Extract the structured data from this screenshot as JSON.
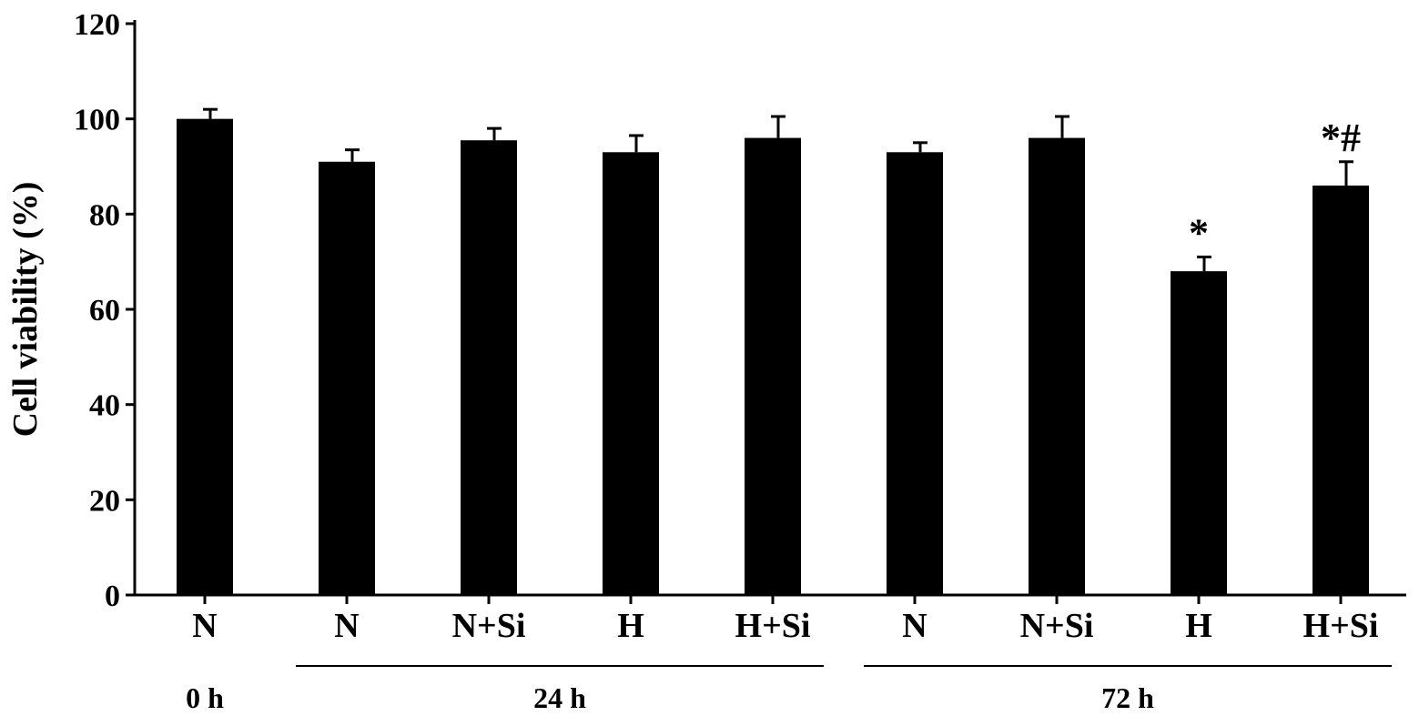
{
  "chart_data": {
    "type": "bar",
    "title": "",
    "xlabel": "",
    "ylabel": "Cell viability (%)",
    "ylim": [
      0,
      120
    ],
    "yticks": [
      "0",
      "20",
      "40",
      "60",
      "80",
      "100",
      "120"
    ],
    "ytick_values": [
      0,
      20,
      40,
      60,
      80,
      100,
      120
    ],
    "grid": false,
    "legend": "none",
    "bar_color": "#000000",
    "categories": [
      "N",
      "N",
      "N+Si",
      "H",
      "H+Si",
      "N",
      "N+Si",
      "H",
      "H+Si"
    ],
    "values": [
      100,
      91,
      95.5,
      93,
      96,
      93,
      96,
      68,
      86
    ],
    "errors": [
      2,
      2.5,
      2.5,
      3.5,
      4.5,
      2,
      4.5,
      3,
      5
    ],
    "annotations": [
      "",
      "",
      "",
      "",
      "",
      "",
      "",
      "*",
      "*#"
    ],
    "groups": [
      {
        "label": "0 h",
        "indices": [
          0
        ],
        "line": false
      },
      {
        "label": "24 h",
        "indices": [
          1,
          2,
          3,
          4
        ],
        "line": true
      },
      {
        "label": "72 h",
        "indices": [
          5,
          6,
          7,
          8
        ],
        "line": true
      }
    ]
  }
}
